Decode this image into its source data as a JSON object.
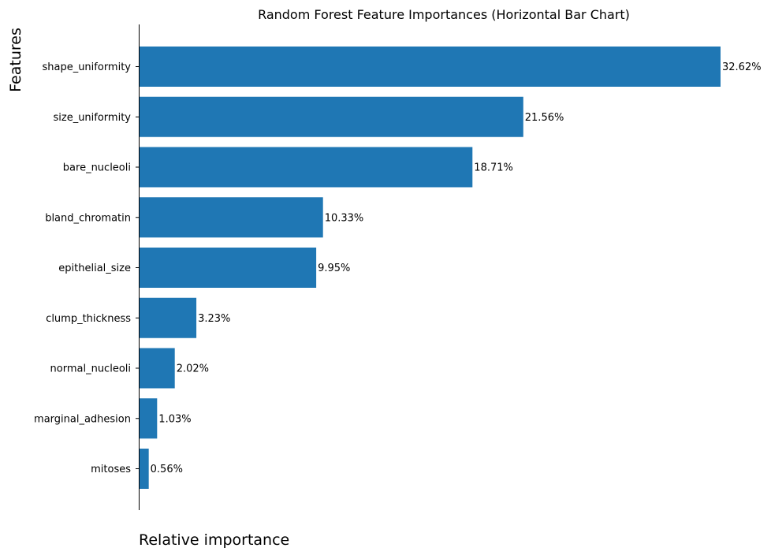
{
  "chart_data": {
    "type": "bar",
    "orientation": "horizontal",
    "title": "Random Forest Feature Importances (Horizontal Bar Chart)",
    "xlabel": "Relative importance",
    "ylabel": "Features",
    "categories": [
      "shape_uniformity",
      "size_uniformity",
      "bare_nucleoli",
      "bland_chromatin",
      "epithelial_size",
      "clump_thickness",
      "normal_nucleoli",
      "marginal_adhesion",
      "mitoses"
    ],
    "values": [
      32.62,
      21.56,
      18.71,
      10.33,
      9.95,
      3.23,
      2.02,
      1.03,
      0.56
    ],
    "value_labels": [
      "32.62%",
      "21.56%",
      "18.71%",
      "10.33%",
      "9.95%",
      "3.23%",
      "2.02%",
      "1.03%",
      "0.56%"
    ],
    "value_unit": "%",
    "xlim": [
      0,
      32.62
    ],
    "grid": false,
    "x_ticks_shown": false,
    "bar_color": "#1f77b4"
  }
}
